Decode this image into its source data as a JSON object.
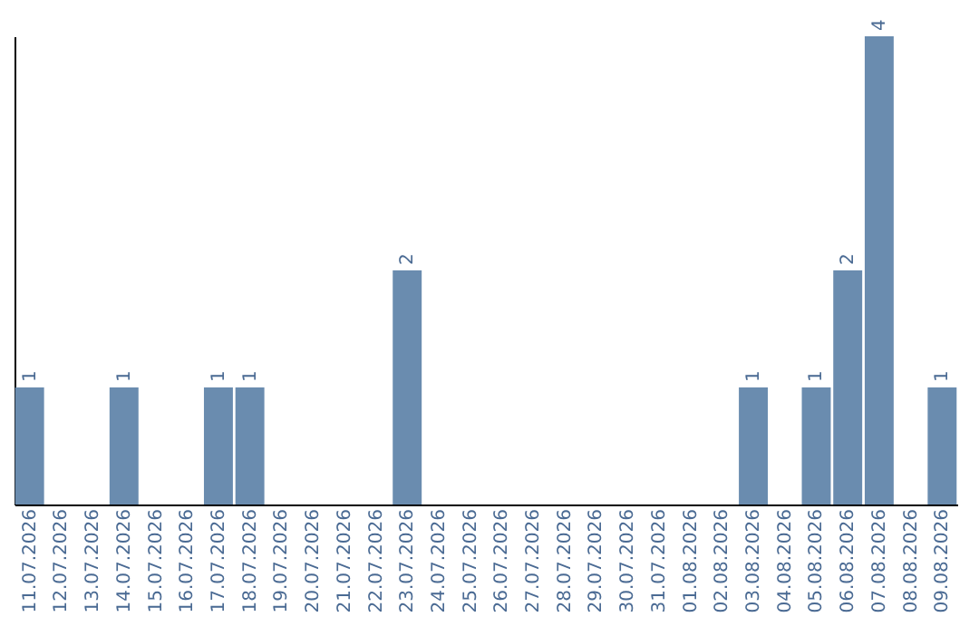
{
  "chart_data": {
    "type": "bar",
    "categories": [
      "11.07.2026",
      "12.07.2026",
      "13.07.2026",
      "14.07.2026",
      "15.07.2026",
      "16.07.2026",
      "17.07.2026",
      "18.07.2026",
      "19.07.2026",
      "20.07.2026",
      "21.07.2026",
      "22.07.2026",
      "23.07.2026",
      "24.07.2026",
      "25.07.2026",
      "26.07.2026",
      "27.07.2026",
      "28.07.2026",
      "29.07.2026",
      "30.07.2026",
      "31.07.2026",
      "01.08.2026",
      "02.08.2026",
      "03.08.2026",
      "04.08.2026",
      "05.08.2026",
      "06.08.2026",
      "07.08.2026",
      "08.08.2026",
      "09.08.2026"
    ],
    "values": [
      1,
      0,
      0,
      1,
      0,
      0,
      1,
      1,
      0,
      0,
      0,
      0,
      2,
      0,
      0,
      0,
      0,
      0,
      0,
      0,
      0,
      0,
      0,
      1,
      0,
      1,
      2,
      4,
      0,
      1
    ],
    "value_labels": [
      "1",
      null,
      null,
      "1",
      null,
      null,
      "1",
      "1",
      null,
      null,
      null,
      null,
      "2",
      null,
      null,
      null,
      null,
      null,
      null,
      null,
      null,
      null,
      null,
      "1",
      null,
      "1",
      "2",
      "4",
      null,
      "1"
    ],
    "color": "#6a8caf",
    "tick_labels": "x",
    "grid": false
  }
}
